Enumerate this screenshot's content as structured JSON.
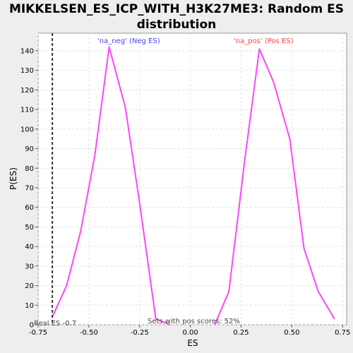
{
  "chart_data": {
    "type": "line",
    "title_lines": [
      "MIKKELSEN_ES_ICP_WITH_H3K27ME3: Random ES",
      "distribution"
    ],
    "xlabel": "ES",
    "ylabel": "P(ES)",
    "xlim": [
      -0.75,
      0.77
    ],
    "ylim": [
      0,
      149
    ],
    "x_ticks": [
      "-0.75",
      "-0.50",
      "-0.25",
      "0.00",
      "0.25",
      "0.50",
      "0.75"
    ],
    "x_tick_values": [
      -0.75,
      -0.5,
      -0.25,
      0.0,
      0.25,
      0.5,
      0.75
    ],
    "y_ticks": [
      "0",
      "10",
      "20",
      "30",
      "40",
      "50",
      "60",
      "70",
      "80",
      "90",
      "100",
      "110",
      "120",
      "130",
      "140"
    ],
    "y_tick_values": [
      0,
      10,
      20,
      30,
      40,
      50,
      60,
      70,
      80,
      90,
      100,
      110,
      120,
      130,
      140
    ],
    "grid": true,
    "line_color": "#ff44ff",
    "series": [
      {
        "name": "'na_neg' (Neg ES)",
        "color": "#4444ff",
        "x": [
          -0.68,
          -0.61,
          -0.54,
          -0.47,
          -0.4,
          -0.32,
          -0.25,
          -0.17,
          -0.1
        ],
        "y": [
          4,
          20,
          48,
          87,
          142,
          111,
          62,
          3,
          0
        ]
      },
      {
        "name": "'na_pos' (Pos ES)",
        "color": "#ff4444",
        "x": [
          0.12,
          0.19,
          0.27,
          0.34,
          0.41,
          0.49,
          0.56,
          0.63,
          0.71
        ],
        "y": [
          0,
          17,
          86,
          141,
          124,
          95,
          39,
          17,
          3
        ]
      }
    ],
    "real_es": {
      "value": -0.68,
      "label": "Real ES -0.7"
    },
    "pos_scores_text": "Sets with pos scores: 52%"
  }
}
